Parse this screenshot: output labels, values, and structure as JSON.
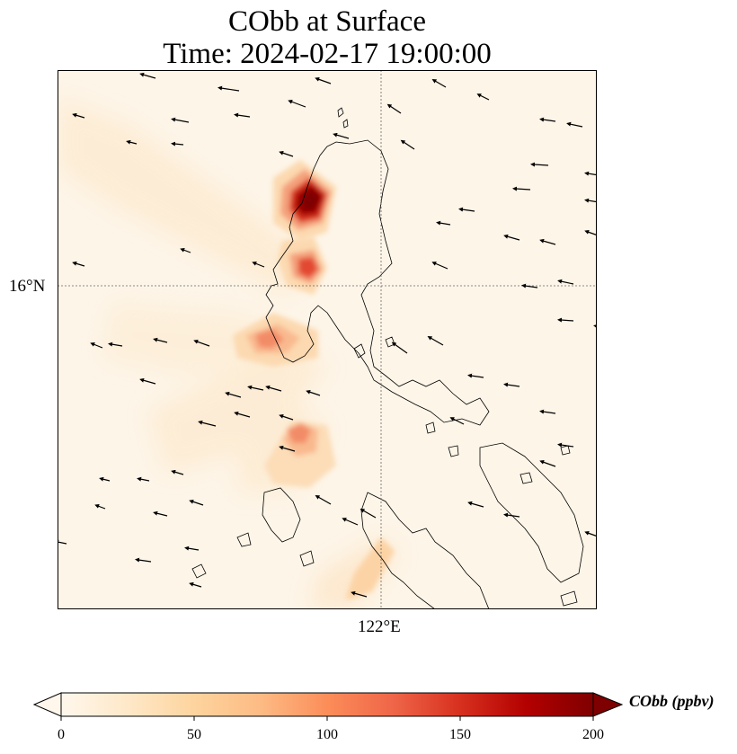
{
  "figure": {
    "title_line1": "CObb at Surface",
    "title_line2": "Time: 2024-02-17 19:00:00",
    "lat_tick_label": "16°N",
    "lon_tick_label": "122°E",
    "colorbar": {
      "label": "CObb (ppbv)",
      "min": 0,
      "max": 200,
      "ticks": [
        "0",
        "50",
        "100",
        "150",
        "200"
      ],
      "extend": "both",
      "colormap": "OrRd",
      "colors": [
        "#fff7ec",
        "#fee8c8",
        "#fdd49e",
        "#fdbb84",
        "#fc8d59",
        "#ef6548",
        "#d7301f",
        "#b30000",
        "#7f0000"
      ]
    }
  },
  "map": {
    "variable": "CObb",
    "level": "Surface",
    "background_color": "#fdf5e8",
    "coastline_color": "#000000",
    "gridlines": "dotted",
    "plumes": [
      {
        "name": "northern plume",
        "peak_ppbv": 200
      },
      {
        "name": "central plume",
        "peak_ppbv": 140
      },
      {
        "name": "western plume",
        "peak_ppbv": 110
      },
      {
        "name": "southern plume",
        "peak_ppbv": 95
      },
      {
        "name": "south-east plume",
        "peak_ppbv": 45
      }
    ],
    "wind_vectors": "quiver arrows showing surface wind, mostly easterly"
  }
}
